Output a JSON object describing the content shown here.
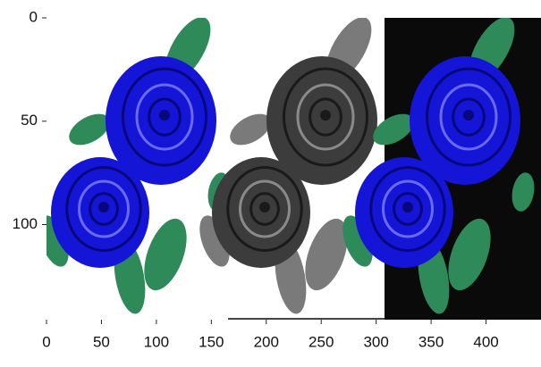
{
  "chart_data": {
    "type": "image",
    "xlim": [
      0,
      450
    ],
    "xticks": [
      0,
      50,
      100,
      150,
      200,
      250,
      300,
      350,
      400
    ],
    "ylim": [
      146,
      0
    ],
    "yticks": [
      0,
      50,
      100
    ]
  }
}
